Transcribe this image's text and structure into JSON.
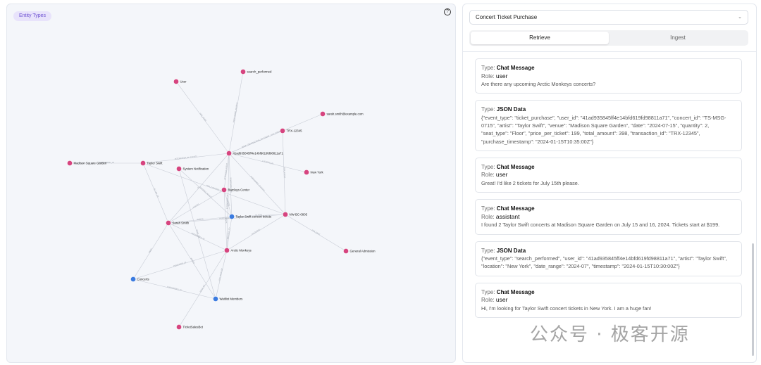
{
  "graph": {
    "badge": "Entity Types",
    "help": "?",
    "nodes": [
      {
        "id": "user",
        "label": "User",
        "color": "#d6447f"
      },
      {
        "id": "search_performed",
        "label": "search_performed",
        "color": "#d6447f"
      },
      {
        "id": "email",
        "label": "sarah.smith@example.com",
        "color": "#d6447f"
      },
      {
        "id": "trx",
        "label": "TRX-12345",
        "color": "#d6447f"
      },
      {
        "id": "hash",
        "label": "41ad935845ff4e14bfd619fd98811a71",
        "color": "#d6447f"
      },
      {
        "id": "msg",
        "label": "Madison Square Garden",
        "color": "#d6447f"
      },
      {
        "id": "taylor",
        "label": "Taylor Swift",
        "color": "#d6447f"
      },
      {
        "id": "sysnote",
        "label": "System Notification",
        "color": "#d6447f"
      },
      {
        "id": "newyork",
        "label": "New York",
        "color": "#d6447f"
      },
      {
        "id": "barclays",
        "label": "Barclays Center",
        "color": "#d6447f"
      },
      {
        "id": "tsmsg",
        "label": "NW-BC-0805",
        "color": "#d6447f"
      },
      {
        "id": "tstickets",
        "label": "Taylor Swift concert tickets",
        "color": "#3b7be0"
      },
      {
        "id": "sarah",
        "label": "Sarah Smith",
        "color": "#d6447f"
      },
      {
        "id": "arctic",
        "label": "Arctic Monkeys",
        "color": "#d6447f"
      },
      {
        "id": "genadm",
        "label": "General Admission",
        "color": "#d6447f"
      },
      {
        "id": "concerts",
        "label": "Concerts",
        "color": "#3b7be0"
      },
      {
        "id": "waitlist",
        "label": "Waitlist Members",
        "color": "#3b7be0"
      },
      {
        "id": "ticketsales",
        "label": "TicketSalesBot",
        "color": "#d6447f"
      }
    ],
    "edges": [
      {
        "from": "user",
        "to": "hash",
        "label": "HAS_USER"
      },
      {
        "from": "search_performed",
        "to": "hash",
        "label": "PERFORMED_SEARCH"
      },
      {
        "from": "email",
        "to": "hash",
        "label": "HAS_EMAIL"
      },
      {
        "from": "trx",
        "to": "hash",
        "label": "MADE_TRANSACTION_TO_EVENT"
      },
      {
        "from": "taylor",
        "to": "hash",
        "label": "INTERESTED_IN_EVENTS"
      },
      {
        "from": "msg",
        "to": "taylor",
        "label": "PERFORMING_AT"
      },
      {
        "from": "hash",
        "to": "newyork",
        "label": "LOCATED_IN"
      },
      {
        "from": "hash",
        "to": "barclays",
        "label": "ATTENDED_EVENT"
      },
      {
        "from": "hash",
        "to": "tsmsg",
        "label": "PURCHASED_TICKETS"
      },
      {
        "from": "hash",
        "to": "sarah",
        "label": "IS"
      },
      {
        "from": "hash",
        "to": "arctic",
        "label": "INTERESTED_IN"
      },
      {
        "from": "hash",
        "to": "tstickets",
        "label": "SEARCHED_FOR"
      },
      {
        "from": "trx",
        "to": "tsmsg",
        "label": "FOR_EVENT"
      },
      {
        "from": "taylor",
        "to": "sarah",
        "label": "IS_FAN_OF"
      },
      {
        "from": "taylor",
        "to": "tsmsg",
        "label": "HAS_CONCERT_AT"
      },
      {
        "from": "sysnote",
        "to": "tstickets",
        "label": "NOTIFIES_ABOUT"
      },
      {
        "from": "sysnote",
        "to": "waitlist",
        "label": "SENT_TO"
      },
      {
        "from": "barclays",
        "to": "tstickets",
        "label": "HOSTS"
      },
      {
        "from": "barclays",
        "to": "sarah",
        "label": "VISITED"
      },
      {
        "from": "barclays",
        "to": "arctic",
        "label": "HOSTS"
      },
      {
        "from": "tsmsg",
        "to": "genadm",
        "label": "HAS_SEAT"
      },
      {
        "from": "tsmsg",
        "to": "sarah",
        "label": "PURCHASED_BY"
      },
      {
        "from": "tsmsg",
        "to": "arctic",
        "label": "FEATURES"
      },
      {
        "from": "tsmsg",
        "to": "tstickets",
        "label": "IS_FOR"
      },
      {
        "from": "sarah",
        "to": "tstickets",
        "label": "WANTS"
      },
      {
        "from": "sarah",
        "to": "concerts",
        "label": "LIKES"
      },
      {
        "from": "sarah",
        "to": "waitlist",
        "label": "JOINED"
      },
      {
        "from": "sarah",
        "to": "arctic",
        "label": "INTERESTED_IN"
      },
      {
        "from": "arctic",
        "to": "concerts",
        "label": "PERFORMS_AT"
      },
      {
        "from": "arctic",
        "to": "waitlist",
        "label": "HAS_WAITLIST"
      },
      {
        "from": "arctic",
        "to": "ticketsales",
        "label": "SOLD_BY"
      },
      {
        "from": "tstickets",
        "to": "arctic",
        "label": "RELATED_TO"
      },
      {
        "from": "concerts",
        "to": "waitlist",
        "label": "SUBSCRIBED_TO"
      }
    ]
  },
  "panel": {
    "scenario": "Concert Ticket Purchase",
    "tabs": [
      "Retrieve",
      "Ingest"
    ],
    "labels": {
      "type": "Type: ",
      "role": "Role: "
    },
    "messages": [
      {
        "type": "Chat Message",
        "role": "user",
        "text": "Are there any upcoming Arctic Monkeys concerts?"
      },
      {
        "type": "JSON Data",
        "role": "",
        "text": "{\"event_type\": \"ticket_purchase\", \"user_id\": \"41ad935845ff4e14bfd619fd98811a71\", \"concert_id\": \"TS-MSG-0715\", \"artist\": \"Taylor Swift\", \"venue\": \"Madison Square Garden\", \"date\": \"2024-07-15\", \"quantity\": 2, \"seat_type\": \"Floor\", \"price_per_ticket\": 199, \"total_amount\": 398, \"transaction_id\": \"TRX-12345\", \"purchase_timestamp\": \"2024-01-15T10:35:00Z\"}"
      },
      {
        "type": "Chat Message",
        "role": "user",
        "text": "Great! I'd like 2 tickets for July 15th please."
      },
      {
        "type": "Chat Message",
        "role": "assistant",
        "text": "I found 2 Taylor Swift concerts at Madison Square Garden on July 15 and 16, 2024. Tickets start at $199."
      },
      {
        "type": "JSON Data",
        "role": "",
        "text": "{\"event_type\": \"search_performed\", \"user_id\": \"41ad935845ff4e14bfd619fd98811a71\", \"artist\": \"Taylor Swift\", \"location\": \"New York\", \"date_range\": \"2024-07\", \"timestamp\": \"2024-01-15T10:30:00Z\"}"
      },
      {
        "type": "Chat Message",
        "role": "user",
        "text": "Hi, I'm looking for Taylor Swift concert tickets in New York. I am a huge fan!"
      }
    ]
  },
  "watermark": "公众号 · 极客开源"
}
